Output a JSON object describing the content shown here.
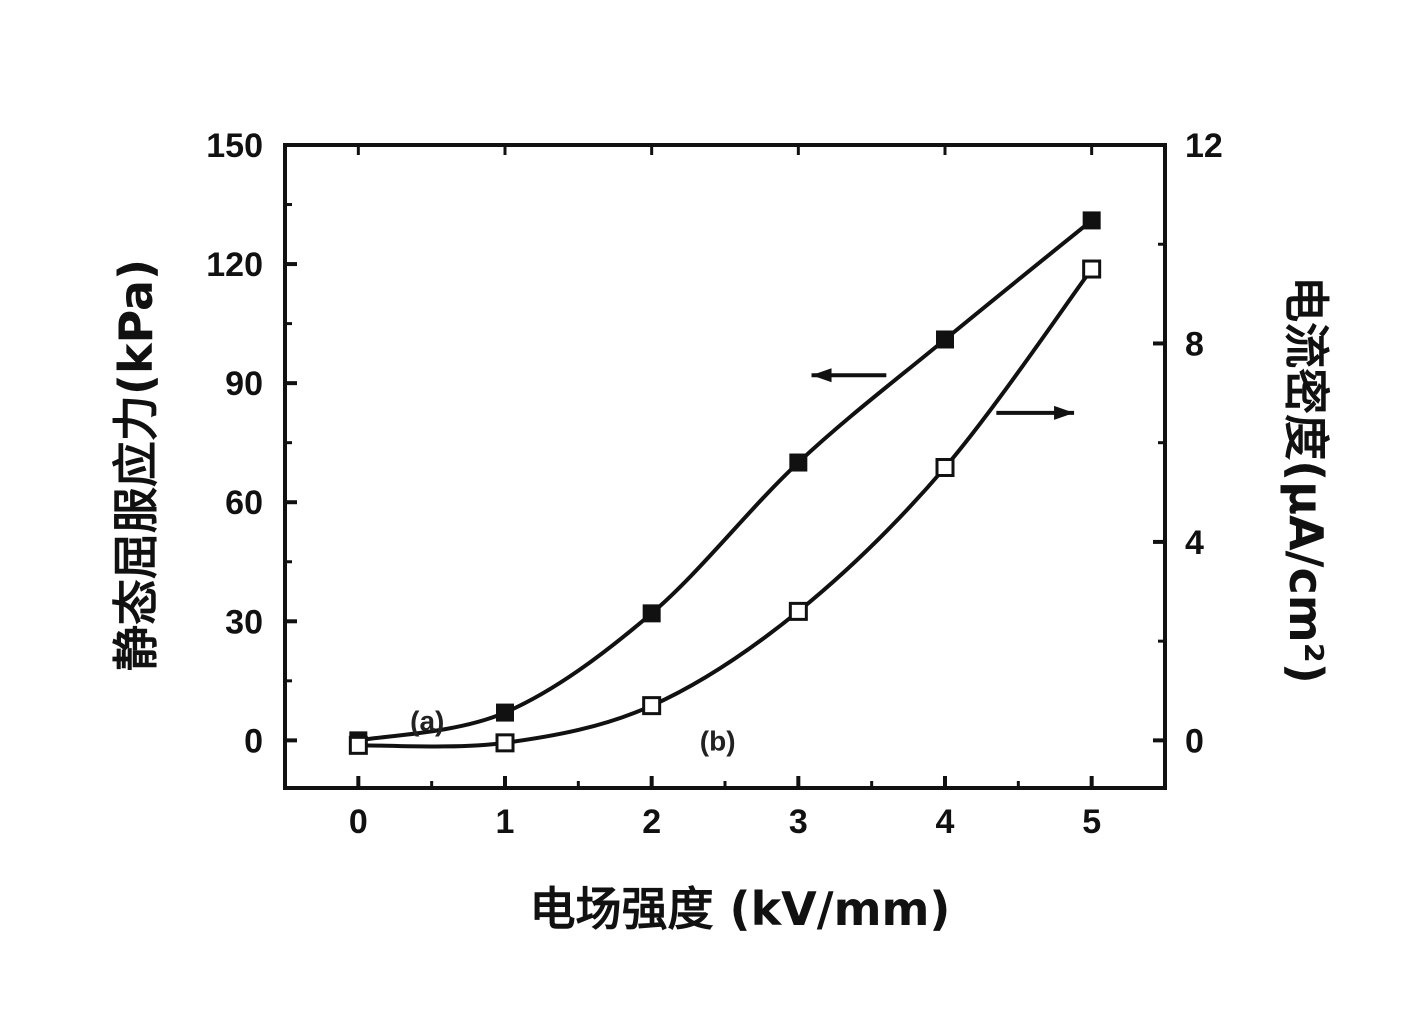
{
  "chart_data": {
    "type": "line",
    "xlabel": "电场强度 (kV/mm)",
    "ylabel_left": "静态屈服应力(kPa)",
    "ylabel_right": "电流密度(μA/cm²)",
    "xlim": [
      -0.5,
      5.5
    ],
    "ylim_left": [
      -12,
      150
    ],
    "ylim_right": [
      -0.96,
      12
    ],
    "x_ticks": [
      0,
      1,
      2,
      3,
      4,
      5
    ],
    "x_tick_labels": [
      "0",
      "1",
      "2",
      "3",
      "4",
      "5"
    ],
    "y_left_ticks": [
      0,
      30,
      60,
      90,
      120,
      150
    ],
    "y_left_tick_labels": [
      "0",
      "30",
      "60",
      "90",
      "120",
      "150"
    ],
    "y_right_ticks": [
      0,
      4,
      8,
      12
    ],
    "y_right_tick_labels": [
      "0",
      "4",
      "8",
      "12"
    ],
    "grid": false,
    "series": [
      {
        "label": "(a)",
        "axis": "left",
        "marker": "filled-square",
        "color": "#111111",
        "x": [
          0,
          1,
          2,
          3,
          4,
          5
        ],
        "y": [
          0,
          7,
          32,
          70,
          101,
          131
        ]
      },
      {
        "label": "(b)",
        "axis": "right",
        "marker": "open-square",
        "color": "#111111",
        "x": [
          0,
          1,
          2,
          3,
          4,
          5
        ],
        "y": [
          -0.1,
          -0.05,
          0.7,
          2.6,
          5.5,
          9.5
        ]
      }
    ],
    "annotations": {
      "arrow_left_series": "points-left",
      "arrow_right_series": "points-right"
    }
  }
}
